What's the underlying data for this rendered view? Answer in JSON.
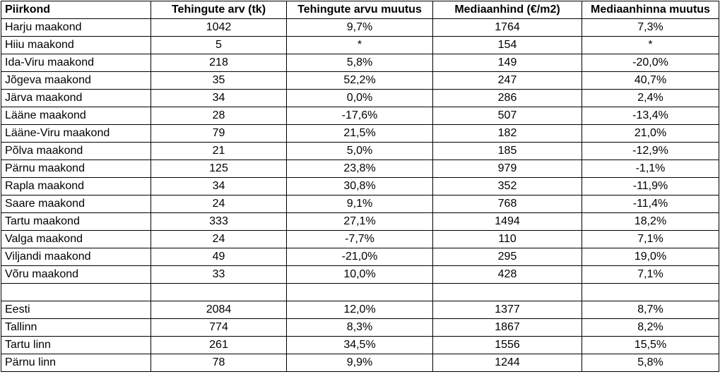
{
  "table": {
    "headers": [
      "Piirkond",
      "Tehingute arv (tk)",
      "Tehingute arvu muutus",
      "Mediaanhind (€/m2)",
      "Mediaanhinna muutus"
    ],
    "rows": [
      [
        "Harju maakond",
        "1042",
        "9,7%",
        "1764",
        "7,3%"
      ],
      [
        "Hiiu maakond",
        "5",
        "*",
        "154",
        "*"
      ],
      [
        "Ida-Viru maakond",
        "218",
        "5,8%",
        "149",
        "-20,0%"
      ],
      [
        "Jõgeva maakond",
        "35",
        "52,2%",
        "247",
        "40,7%"
      ],
      [
        "Järva maakond",
        "34",
        "0,0%",
        "286",
        "2,4%"
      ],
      [
        "Lääne maakond",
        "28",
        "-17,6%",
        "507",
        "-13,4%"
      ],
      [
        "Lääne-Viru maakond",
        "79",
        "21,5%",
        "182",
        "21,0%"
      ],
      [
        "Põlva maakond",
        "21",
        "5,0%",
        "185",
        "-12,9%"
      ],
      [
        "Pärnu maakond",
        "125",
        "23,8%",
        "979",
        "-1,1%"
      ],
      [
        "Rapla maakond",
        "34",
        "30,8%",
        "352",
        "-11,9%"
      ],
      [
        "Saare maakond",
        "24",
        "9,1%",
        "768",
        "-11,4%"
      ],
      [
        "Tartu maakond",
        "333",
        "27,1%",
        "1494",
        "18,2%"
      ],
      [
        "Valga maakond",
        "24",
        "-7,7%",
        "110",
        "7,1%"
      ],
      [
        "Viljandi maakond",
        "49",
        "-21,0%",
        "295",
        "19,0%"
      ],
      [
        "Võru maakond",
        "33",
        "10,0%",
        "428",
        "7,1%"
      ],
      [
        "",
        "",
        "",
        "",
        ""
      ],
      [
        "Eesti",
        "2084",
        "12,0%",
        "1377",
        "8,7%"
      ],
      [
        "Tallinn",
        "774",
        "8,3%",
        "1867",
        "8,2%"
      ],
      [
        "Tartu linn",
        "261",
        "34,5%",
        "1556",
        "15,5%"
      ],
      [
        "Pärnu linn",
        "78",
        "9,9%",
        "1244",
        "5,8%"
      ]
    ]
  }
}
